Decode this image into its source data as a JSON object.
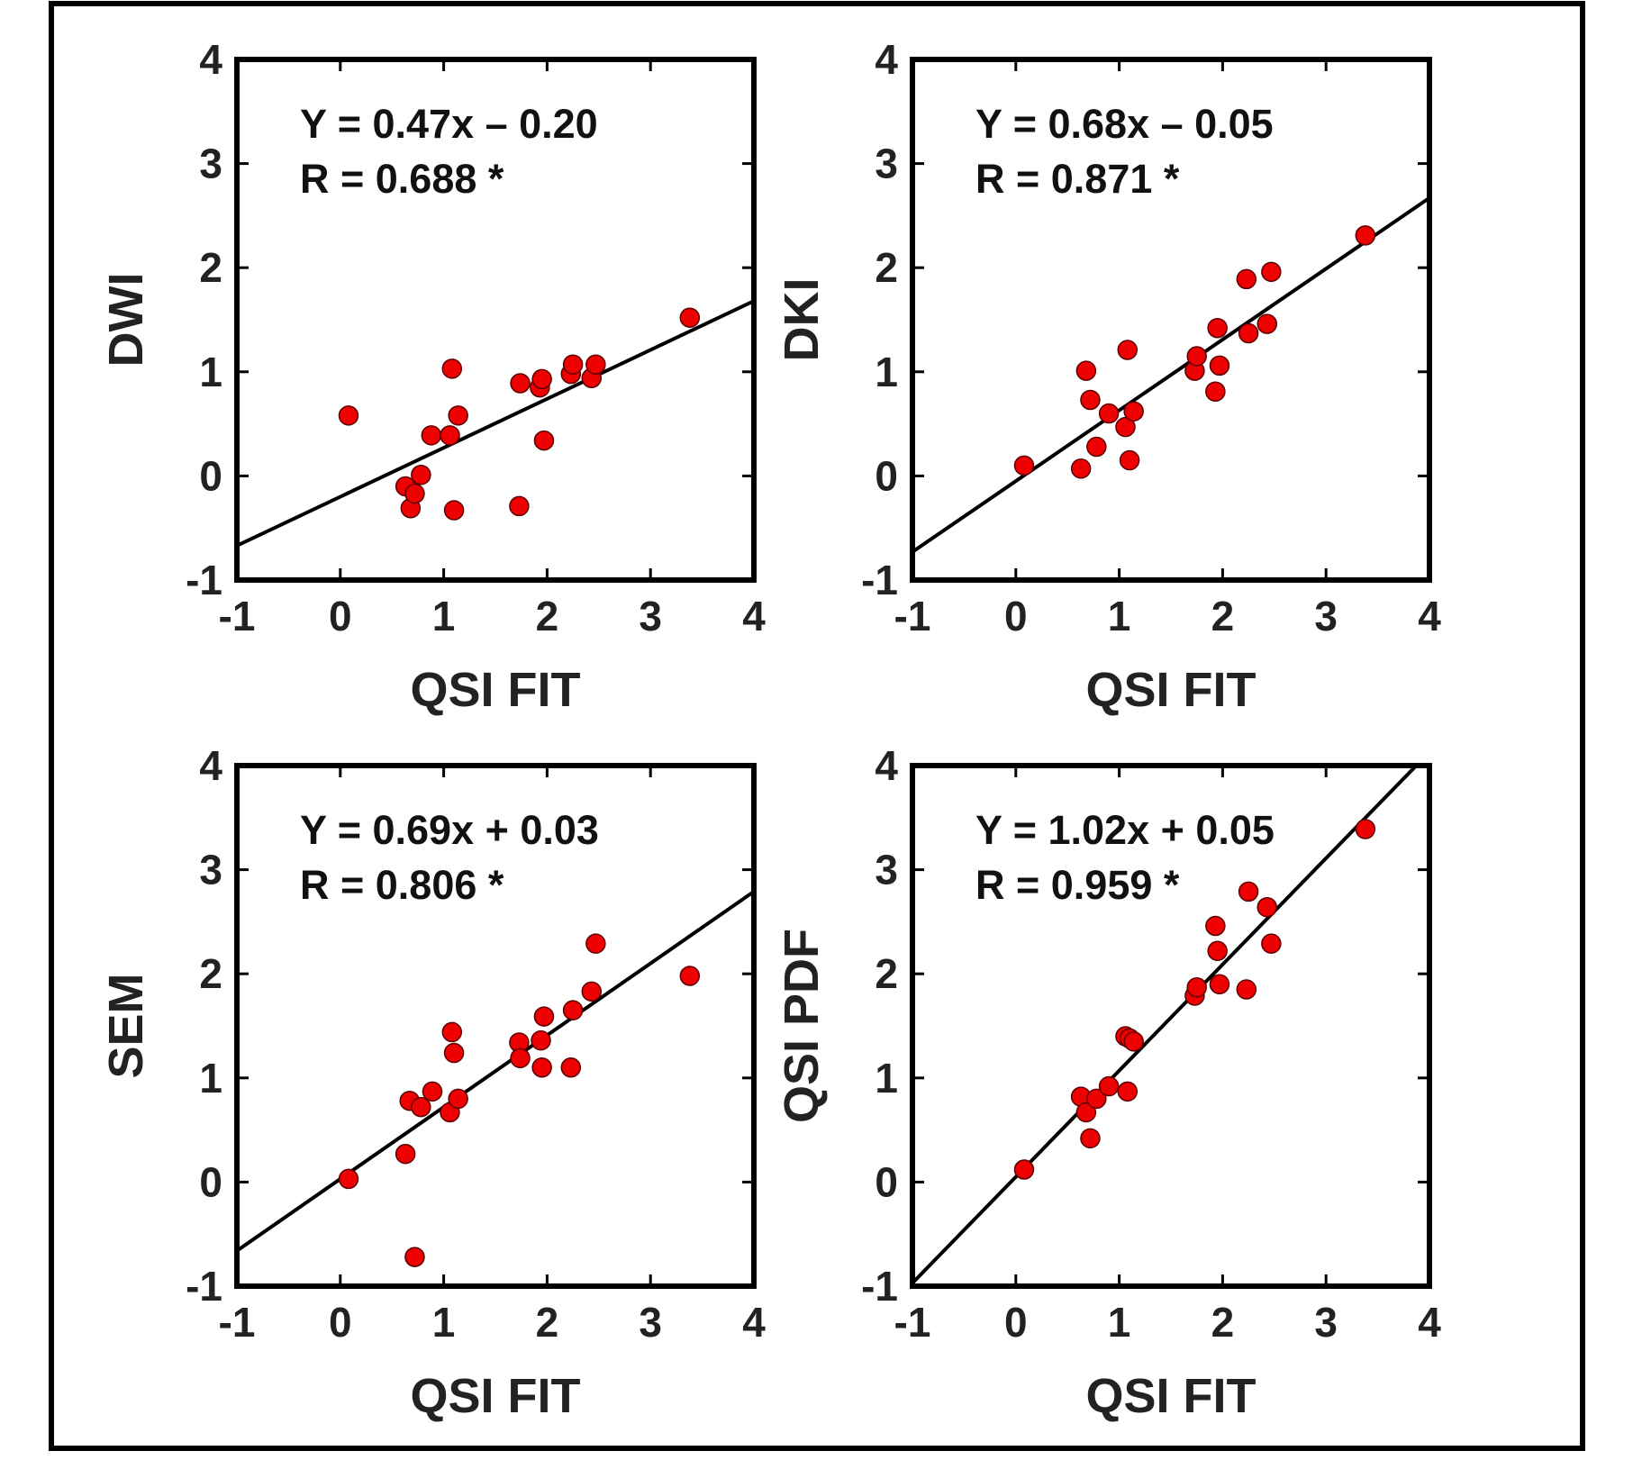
{
  "chart_data": [
    {
      "type": "scatter",
      "xlabel": "QSI FIT",
      "ylabel": "DWI",
      "xlim": [
        -1,
        4
      ],
      "ylim": [
        -1,
        4
      ],
      "xticks": [
        "-1",
        "0",
        "1",
        "2",
        "3",
        "4"
      ],
      "yticks": [
        "-1",
        "0",
        "1",
        "2",
        "3",
        "4"
      ],
      "equation": "Y = 0.47x – 0.20",
      "r_text": "R = 0.688 *",
      "fit": {
        "slope": 0.47,
        "intercept": -0.2
      },
      "x": [
        0.08,
        0.63,
        0.68,
        0.72,
        0.78,
        0.88,
        1.06,
        1.08,
        1.1,
        1.14,
        1.73,
        1.74,
        1.93,
        1.95,
        1.97,
        2.23,
        2.25,
        2.43,
        2.47,
        3.38
      ],
      "y": [
        0.58,
        -0.1,
        -0.31,
        -0.17,
        0.01,
        0.39,
        0.39,
        1.03,
        -0.33,
        0.58,
        -0.29,
        0.89,
        0.85,
        0.93,
        0.34,
        0.98,
        1.07,
        0.94,
        1.07,
        1.52
      ]
    },
    {
      "type": "scatter",
      "xlabel": "QSI FIT",
      "ylabel": "DKI",
      "xlim": [
        -1,
        4
      ],
      "ylim": [
        -1,
        4
      ],
      "xticks": [
        "-1",
        "0",
        "1",
        "2",
        "3",
        "4"
      ],
      "yticks": [
        "-1",
        "0",
        "1",
        "2",
        "3",
        "4"
      ],
      "equation": "Y = 0.68x – 0.05",
      "r_text": "R = 0.871 *",
      "fit": {
        "slope": 0.68,
        "intercept": -0.05
      },
      "x": [
        0.08,
        0.63,
        0.68,
        0.72,
        0.78,
        0.9,
        1.06,
        1.08,
        1.1,
        1.14,
        1.73,
        1.75,
        1.93,
        1.95,
        1.97,
        2.23,
        2.25,
        2.43,
        2.47,
        3.38
      ],
      "y": [
        0.1,
        0.07,
        1.01,
        0.73,
        0.28,
        0.6,
        0.47,
        1.21,
        0.15,
        0.62,
        1.01,
        1.15,
        0.81,
        1.42,
        1.06,
        1.89,
        1.37,
        1.46,
        1.96,
        2.31
      ]
    },
    {
      "type": "scatter",
      "xlabel": "QSI FIT",
      "ylabel": "SEM",
      "xlim": [
        -1,
        4
      ],
      "ylim": [
        -1,
        4
      ],
      "xticks": [
        "-1",
        "0",
        "1",
        "2",
        "3",
        "4"
      ],
      "yticks": [
        "-1",
        "0",
        "1",
        "2",
        "3",
        "4"
      ],
      "equation": "Y = 0.69x + 0.03",
      "r_text": "R = 0.806 *",
      "fit": {
        "slope": 0.69,
        "intercept": 0.03
      },
      "x": [
        0.08,
        0.63,
        0.67,
        0.72,
        0.78,
        0.89,
        1.06,
        1.08,
        1.1,
        1.14,
        1.73,
        1.74,
        1.94,
        1.95,
        1.97,
        2.23,
        2.25,
        2.43,
        2.47,
        3.38
      ],
      "y": [
        0.03,
        0.27,
        0.78,
        -0.72,
        0.72,
        0.87,
        0.67,
        1.44,
        1.24,
        0.8,
        1.34,
        1.19,
        1.36,
        1.1,
        1.59,
        1.1,
        1.65,
        1.83,
        2.29,
        1.98
      ]
    },
    {
      "type": "scatter",
      "xlabel": "QSI FIT",
      "ylabel": "QSI PDF",
      "xlim": [
        -1,
        4
      ],
      "ylim": [
        -1,
        4
      ],
      "xticks": [
        "-1",
        "0",
        "1",
        "2",
        "3",
        "4"
      ],
      "yticks": [
        "-1",
        "0",
        "1",
        "2",
        "3",
        "4"
      ],
      "equation": "Y = 1.02x + 0.05",
      "r_text": "R = 0.959 *",
      "fit": {
        "slope": 1.02,
        "intercept": 0.05
      },
      "x": [
        0.08,
        0.63,
        0.68,
        0.72,
        0.78,
        0.9,
        1.06,
        1.08,
        1.1,
        1.14,
        1.73,
        1.75,
        1.93,
        1.95,
        1.97,
        2.23,
        2.25,
        2.43,
        2.47,
        3.38
      ],
      "y": [
        0.12,
        0.82,
        0.67,
        0.42,
        0.8,
        0.92,
        1.4,
        0.87,
        1.38,
        1.35,
        1.79,
        1.87,
        2.46,
        2.22,
        1.9,
        1.85,
        2.79,
        2.64,
        2.29,
        3.39
      ]
    }
  ]
}
